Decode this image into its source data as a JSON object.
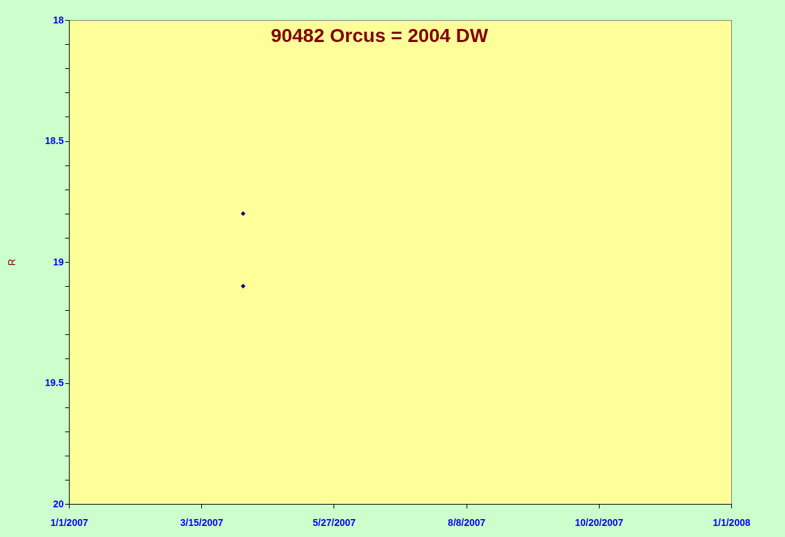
{
  "chart_data": {
    "type": "scatter",
    "title": "90482 Orcus = 2004 DW",
    "ylabel": "R",
    "x": [
      "2007-04-07",
      "2007-04-07"
    ],
    "series": [
      {
        "color": "#000080",
        "values": [
          18.8,
          19.1
        ]
      }
    ],
    "marker": "diamond",
    "grid": false,
    "xlim": [
      "2007-01-01",
      "2008-01-01"
    ],
    "xticks": [
      {
        "value": "2007-01-01",
        "label": "1/1/2007"
      },
      {
        "value": "2007-03-15",
        "label": "3/15/2007"
      },
      {
        "value": "2007-05-27",
        "label": "5/27/2007"
      },
      {
        "value": "2007-08-08",
        "label": "8/8/2007"
      },
      {
        "value": "2007-10-20",
        "label": "10/20/2007"
      },
      {
        "value": "2008-01-01",
        "label": "1/1/2008"
      }
    ],
    "ylim": [
      20,
      18
    ],
    "yticks": [
      18,
      {
        "value": 18.1,
        "label": null
      },
      {
        "value": 18.2,
        "label": null
      },
      {
        "value": 18.3,
        "label": null
      },
      {
        "value": 18.4,
        "label": null
      },
      18.5,
      {
        "value": 18.6,
        "label": null
      },
      {
        "value": 18.7,
        "label": null
      },
      {
        "value": 18.8,
        "label": null
      },
      {
        "value": 18.9,
        "label": null
      },
      19,
      {
        "value": 19.1,
        "label": null
      },
      {
        "value": 19.2,
        "label": null
      },
      {
        "value": 19.3,
        "label": null
      },
      {
        "value": 19.4,
        "label": null
      },
      19.5,
      {
        "value": 19.6,
        "label": null
      },
      {
        "value": 19.7,
        "label": null
      },
      {
        "value": 19.8,
        "label": null
      },
      {
        "value": 19.9,
        "label": null
      },
      20
    ]
  }
}
